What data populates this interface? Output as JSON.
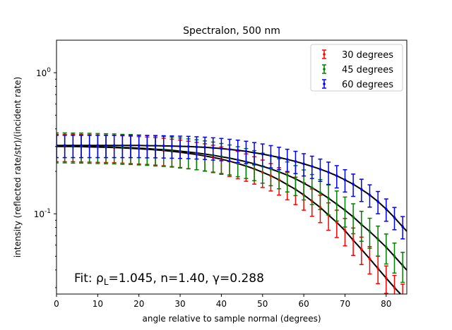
{
  "chart_data": {
    "type": "scatter",
    "title": "Spectralon, 500 nm",
    "xlabel": "angle relative to sample normal (degrees)",
    "ylabel": "intensity (reflected rate/str)/(incident rate)",
    "xlim": [
      0,
      85
    ],
    "ylim": [
      0.027,
      1.7
    ],
    "yscale": "log",
    "grid": false,
    "legend_position": "top-right",
    "x_ticks": [
      0,
      10,
      20,
      30,
      40,
      50,
      60,
      70,
      80
    ],
    "x_tick_labels": [
      "0",
      "10",
      "20",
      "30",
      "40",
      "50",
      "60",
      "70",
      "80"
    ],
    "y_ticks": [
      0.1,
      1.0
    ],
    "y_tick_labels": [
      "10^-1",
      "10^0"
    ],
    "annotation": "Fit: ρ_L=1.045, n=1.40, γ=0.288",
    "fit_curve_color": "#000000",
    "series": [
      {
        "name": "30 degrees",
        "color": "#ff0000",
        "x": [
          0,
          2,
          4,
          6,
          8,
          10,
          12,
          14,
          16,
          18,
          20,
          22,
          24,
          26,
          28,
          30,
          32,
          34,
          36,
          38,
          40,
          42,
          44,
          46,
          48,
          50,
          52,
          54,
          56,
          58,
          60,
          62,
          64,
          66,
          68,
          70,
          72,
          74,
          76,
          78,
          80,
          82,
          84
        ],
        "y": [
          0.3,
          0.3,
          0.3,
          0.299,
          0.298,
          0.297,
          0.296,
          0.295,
          0.293,
          0.291,
          0.289,
          0.287,
          0.284,
          0.281,
          0.277,
          0.273,
          0.268,
          0.263,
          0.257,
          0.251,
          0.244,
          0.236,
          0.227,
          0.218,
          0.208,
          0.197,
          0.186,
          0.174,
          0.161,
          0.149,
          0.136,
          0.123,
          0.111,
          0.098,
          0.087,
          0.076,
          0.065,
          0.056,
          0.048,
          0.041,
          0.035,
          0.03,
          0.026
        ],
        "rel_err": 0.22
      },
      {
        "name": "45 degrees",
        "color": "#008000",
        "x": [
          0,
          2,
          4,
          6,
          8,
          10,
          12,
          14,
          16,
          18,
          20,
          22,
          24,
          26,
          28,
          30,
          32,
          34,
          36,
          38,
          40,
          42,
          44,
          46,
          48,
          50,
          52,
          54,
          56,
          58,
          60,
          62,
          64,
          66,
          68,
          70,
          72,
          74,
          76,
          78,
          80,
          82,
          84
        ],
        "y": [
          0.302,
          0.302,
          0.301,
          0.301,
          0.3,
          0.299,
          0.298,
          0.297,
          0.295,
          0.294,
          0.292,
          0.29,
          0.287,
          0.285,
          0.282,
          0.278,
          0.274,
          0.27,
          0.265,
          0.26,
          0.254,
          0.248,
          0.241,
          0.234,
          0.226,
          0.217,
          0.208,
          0.198,
          0.188,
          0.177,
          0.165,
          0.153,
          0.141,
          0.129,
          0.117,
          0.106,
          0.095,
          0.084,
          0.075,
          0.066,
          0.058,
          0.05,
          0.043
        ],
        "rel_err": 0.24
      },
      {
        "name": "60 degrees",
        "color": "#0000ff",
        "x": [
          0,
          2,
          4,
          6,
          8,
          10,
          12,
          14,
          16,
          18,
          20,
          22,
          24,
          26,
          28,
          30,
          32,
          34,
          36,
          38,
          40,
          42,
          44,
          46,
          48,
          50,
          52,
          54,
          56,
          58,
          60,
          62,
          64,
          66,
          68,
          70,
          72,
          74,
          76,
          78,
          80,
          82,
          84
        ],
        "y": [
          0.305,
          0.305,
          0.305,
          0.305,
          0.305,
          0.305,
          0.305,
          0.305,
          0.305,
          0.305,
          0.305,
          0.304,
          0.304,
          0.303,
          0.302,
          0.301,
          0.3,
          0.298,
          0.296,
          0.293,
          0.29,
          0.286,
          0.282,
          0.277,
          0.271,
          0.265,
          0.258,
          0.251,
          0.243,
          0.235,
          0.226,
          0.217,
          0.207,
          0.197,
          0.186,
          0.174,
          0.162,
          0.149,
          0.136,
          0.122,
          0.108,
          0.094,
          0.081
        ],
        "rel_err": 0.18
      }
    ]
  }
}
